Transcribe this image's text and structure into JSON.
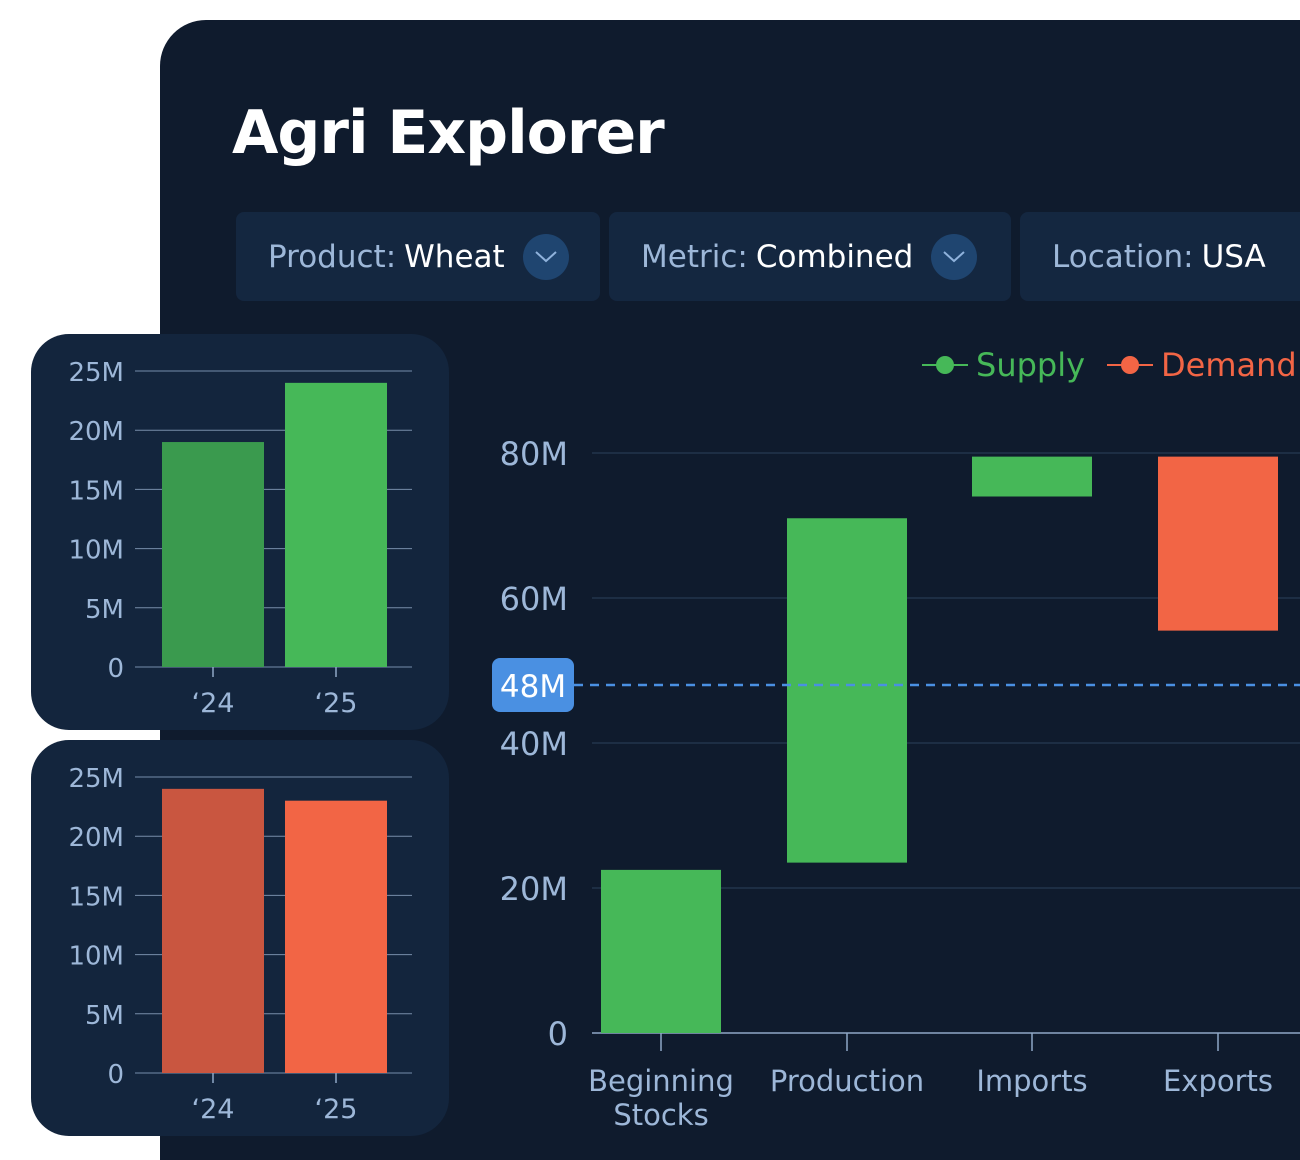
{
  "app": {
    "title": "Agri Explorer"
  },
  "filters": [
    {
      "label": "Product:",
      "value": "Wheat"
    },
    {
      "label": "Metric:",
      "value": "Combined"
    },
    {
      "label": "Location:",
      "value": "USA"
    }
  ],
  "icons": {
    "dropdown": "chevron-down-icon"
  },
  "colors": {
    "supply": "#46b858",
    "supply_prev": "#3a9a4e",
    "demand": "#f26545",
    "demand_prev": "#c95640",
    "reference": "#4a90e2"
  },
  "chart_data": [
    {
      "id": "supply-history",
      "type": "bar",
      "categories": [
        "‘24",
        "‘25"
      ],
      "values": [
        19000000,
        24000000
      ],
      "ylim": [
        0,
        25000000
      ],
      "yticks": [
        0,
        5000000,
        10000000,
        15000000,
        20000000,
        25000000
      ],
      "ytick_labels": [
        "0",
        "5M",
        "10M",
        "15M",
        "20M",
        "25M"
      ],
      "grid": true
    },
    {
      "id": "demand-history",
      "type": "bar",
      "categories": [
        "‘24",
        "‘25"
      ],
      "values": [
        24000000,
        23000000
      ],
      "ylim": [
        0,
        25000000
      ],
      "yticks": [
        0,
        5000000,
        10000000,
        15000000,
        20000000,
        25000000
      ],
      "ytick_labels": [
        "0",
        "5M",
        "10M",
        "15M",
        "20M",
        "25M"
      ],
      "grid": true
    },
    {
      "id": "balance-waterfall",
      "type": "bar",
      "subtype": "waterfall",
      "categories": [
        "Beginning Stocks",
        "Production",
        "Imports",
        "Exports"
      ],
      "category_lines": [
        [
          "Beginning",
          "Stocks"
        ],
        [
          "Production"
        ],
        [
          "Imports"
        ],
        [
          "Exports"
        ]
      ],
      "bars": [
        {
          "start": 0,
          "end": 22500000,
          "series": "Supply"
        },
        {
          "start": 23500000,
          "end": 71000000,
          "series": "Supply"
        },
        {
          "start": 74000000,
          "end": 79500000,
          "series": "Supply"
        },
        {
          "start": 55500000,
          "end": 79500000,
          "series": "Demand"
        }
      ],
      "legend": [
        {
          "name": "Supply"
        },
        {
          "name": "Demand"
        }
      ],
      "legend_position": "top-right",
      "ylim": [
        0,
        80000000
      ],
      "yticks": [
        0,
        20000000,
        40000000,
        60000000,
        80000000
      ],
      "ytick_labels": [
        "0",
        "20M",
        "40M",
        "60M",
        "80M"
      ],
      "reference_line": {
        "value": 48000000,
        "label": "48M"
      },
      "grid": true
    }
  ]
}
